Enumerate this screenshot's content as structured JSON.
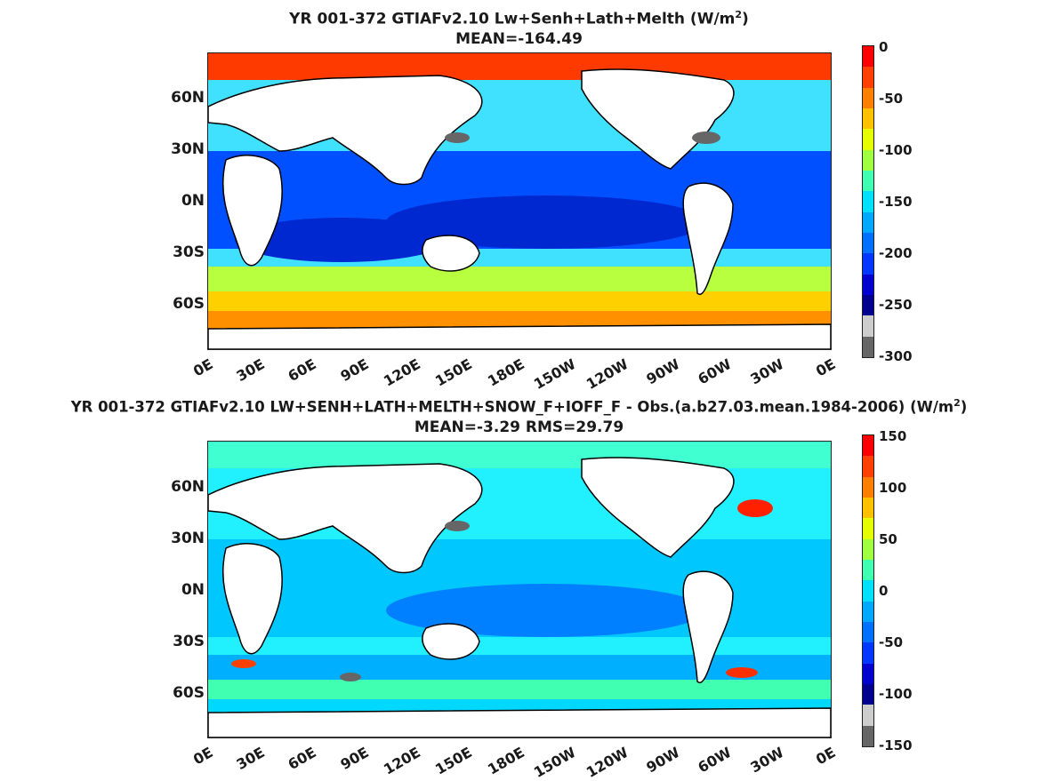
{
  "panels": [
    {
      "title_main": "YR 001-372 GTIAFv2.10 Lw+Senh+Lath+Melth (W/m",
      "title_sup": "2",
      "title_close": ")",
      "subtitle": "MEAN=-164.49",
      "lat_labels": [
        "60N",
        "30N",
        "0N",
        "30S",
        "60S"
      ],
      "lon_labels": [
        "0E",
        "30E",
        "60E",
        "90E",
        "120E",
        "150E",
        "180E",
        "150W",
        "120W",
        "90W",
        "60W",
        "30W",
        "0E"
      ],
      "colorbar": {
        "labels": [
          "0",
          "-50",
          "-100",
          "-150",
          "-200",
          "-250",
          "-300"
        ],
        "colors": [
          "#ff0000",
          "#ff4000",
          "#ff8000",
          "#ffc000",
          "#e6ff00",
          "#a0ff40",
          "#40ffb0",
          "#00e0ff",
          "#00a8ff",
          "#0070ff",
          "#0038ff",
          "#0000d0",
          "#000090",
          "#cccccc",
          "#666666"
        ]
      },
      "map_colors": {
        "arctic": "#ff3a00",
        "high_south": "#ff9000",
        "south_mid": "#ffd000",
        "southern_ocean": "#b8ff40",
        "mid": "#40e0ff",
        "tropic": "#0050ff",
        "deep": "#0028d0",
        "land": "#ffffff",
        "lake": "#666666"
      }
    },
    {
      "title_main": "YR 001-372 GTIAFv2.10 LW+SENH+LATH+MELTH+SNOW_F+IOFF_F - Obs.(a.b27.03.mean.1984-2006) (W/m",
      "title_sup": "2",
      "title_close": ")",
      "subtitle": "MEAN=-3.29 RMS=29.79",
      "lat_labels": [
        "60N",
        "30N",
        "0N",
        "30S",
        "60S"
      ],
      "lon_labels": [
        "0E",
        "30E",
        "60E",
        "90E",
        "120E",
        "150E",
        "180E",
        "150W",
        "120W",
        "90W",
        "60W",
        "30W",
        "0E"
      ],
      "colorbar": {
        "labels": [
          "150",
          "100",
          "50",
          "0",
          "-50",
          "-100",
          "-150"
        ],
        "colors": [
          "#ff0000",
          "#ff4000",
          "#ff8000",
          "#ffc000",
          "#e6ff00",
          "#a0ff40",
          "#40ffb0",
          "#00e0ff",
          "#00a8ff",
          "#0070ff",
          "#0038ff",
          "#0000d0",
          "#000090",
          "#cccccc",
          "#666666"
        ]
      },
      "map_colors": {
        "arctic": "#40ffd0",
        "high_south": "#00d8ff",
        "south_mid": "#40ffb0",
        "southern_ocean": "#00b0ff",
        "mid": "#20f0ff",
        "tropic": "#00c8ff",
        "deep": "#0080ff",
        "land": "#ffffff",
        "lake": "#666666"
      }
    }
  ]
}
